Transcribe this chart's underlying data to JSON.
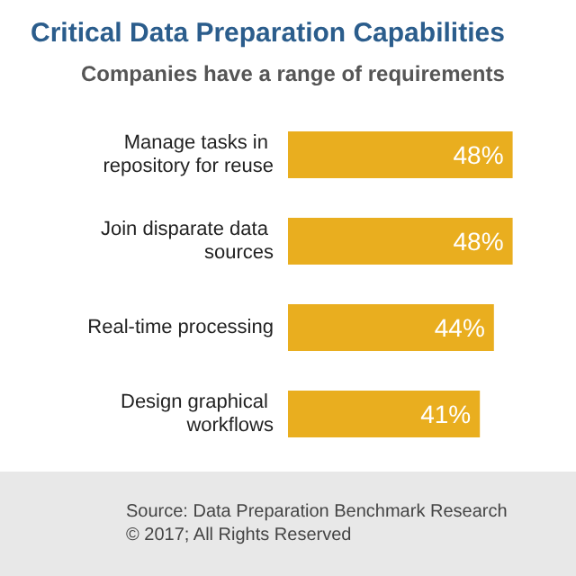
{
  "chart_data": {
    "type": "bar",
    "orientation": "horizontal",
    "title": "Critical Data Preparation Capabilities",
    "subtitle": "Companies have a range of requirements",
    "categories": [
      "Manage tasks in repository for reuse",
      "Join disparate data sources",
      "Real-time processing",
      "Design graphical workflows"
    ],
    "values": [
      48,
      48,
      44,
      41
    ],
    "color": "#e9ae1f",
    "value_labels": [
      "48%",
      "48%",
      "44%",
      "41%"
    ],
    "annotations": [
      "Source: Data Preparation Benchmark Research",
      "© 2017; All Rights Reserved"
    ]
  }
}
